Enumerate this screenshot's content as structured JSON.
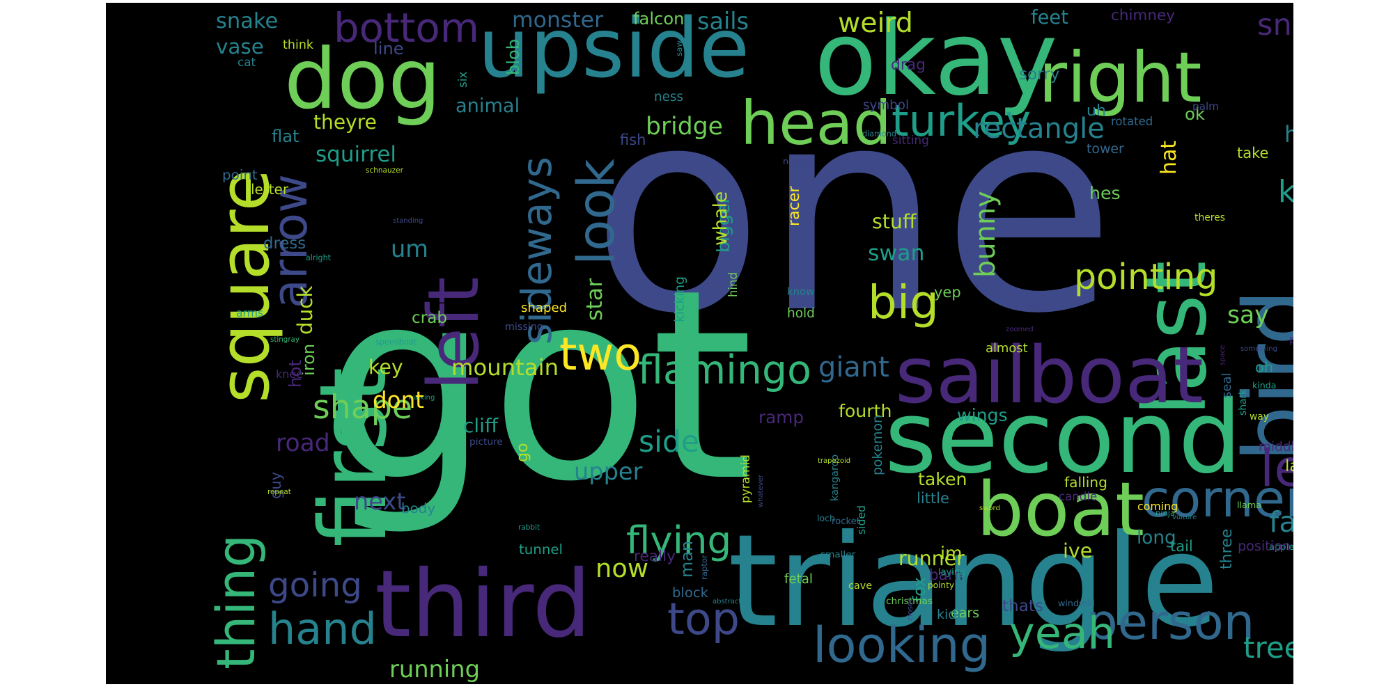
{
  "wordcloud": {
    "background": "#000000",
    "colormap": [
      "#440154",
      "#482878",
      "#3e4989",
      "#31688e",
      "#26828e",
      "#1f9e89",
      "#35b779",
      "#6ece58",
      "#b5de2b",
      "#fde725"
    ],
    "words": [
      {
        "text": "one",
        "color": "#3e4989"
      },
      {
        "text": "got",
        "color": "#35b779"
      },
      {
        "text": "triangle",
        "color": "#26828e"
      },
      {
        "text": "upside",
        "color": "#26828e"
      },
      {
        "text": "okay",
        "color": "#35b779"
      },
      {
        "text": "first",
        "color": "#35b779"
      },
      {
        "text": "second",
        "color": "#35b779"
      },
      {
        "text": "last",
        "color": "#35b779"
      },
      {
        "text": "bird",
        "color": "#31688e"
      },
      {
        "text": "square",
        "color": "#b5de2b"
      },
      {
        "text": "third",
        "color": "#482878"
      },
      {
        "text": "left",
        "color": "#482878"
      },
      {
        "text": "dog",
        "color": "#6ece58"
      },
      {
        "text": "right",
        "color": "#6ece58"
      },
      {
        "text": "head",
        "color": "#6ece58"
      },
      {
        "text": "turkey",
        "color": "#1f9e89"
      },
      {
        "text": "sailboat",
        "color": "#482878"
      },
      {
        "text": "boat",
        "color": "#6ece58"
      },
      {
        "text": "thing",
        "color": "#35b779"
      },
      {
        "text": "look",
        "color": "#31688e"
      },
      {
        "text": "arrow",
        "color": "#3e4989"
      },
      {
        "text": "bottom",
        "color": "#482878"
      },
      {
        "text": "sideways",
        "color": "#31688e"
      },
      {
        "text": "corner",
        "color": "#31688e"
      },
      {
        "text": "leg",
        "color": "#482878"
      },
      {
        "text": "looking",
        "color": "#31688e"
      },
      {
        "text": "person",
        "color": "#31688e"
      },
      {
        "text": "hand",
        "color": "#26828e"
      },
      {
        "text": "top",
        "color": "#3e4989"
      },
      {
        "text": "yeah",
        "color": "#35b779"
      },
      {
        "text": "two",
        "color": "#fde725"
      },
      {
        "text": "flamingo",
        "color": "#35b779"
      },
      {
        "text": "pointing",
        "color": "#b5de2b"
      },
      {
        "text": "big",
        "color": "#b5de2b"
      },
      {
        "text": "rectangle",
        "color": "#26828e"
      },
      {
        "text": "flying",
        "color": "#35b779"
      },
      {
        "text": "going",
        "color": "#3e4989"
      },
      {
        "text": "shape",
        "color": "#6ece58"
      },
      {
        "text": "side",
        "color": "#1f9e89"
      },
      {
        "text": "tree",
        "color": "#1f9e89"
      },
      {
        "text": "facing",
        "color": "#26828e"
      },
      {
        "text": "kind",
        "color": "#1f9e89"
      },
      {
        "text": "house",
        "color": "#26828e"
      },
      {
        "text": "squirrel",
        "color": "#1f9e89"
      },
      {
        "text": "mountain",
        "color": "#b5de2b"
      },
      {
        "text": "giant",
        "color": "#31688e"
      },
      {
        "text": "running",
        "color": "#6ece58"
      },
      {
        "text": "snake",
        "color": "#26828e"
      },
      {
        "text": "monster",
        "color": "#31688e"
      },
      {
        "text": "falcon",
        "color": "#6ece58"
      },
      {
        "text": "sails",
        "color": "#26828e"
      },
      {
        "text": "weird",
        "color": "#b5de2b"
      },
      {
        "text": "feet",
        "color": "#26828e"
      },
      {
        "text": "chimney",
        "color": "#482878"
      },
      {
        "text": "snout",
        "color": "#482878"
      },
      {
        "text": "holding",
        "color": "#6ece58"
      },
      {
        "text": "vase",
        "color": "#26828e"
      },
      {
        "text": "think",
        "color": "#b5de2b"
      },
      {
        "text": "line",
        "color": "#3e4989"
      },
      {
        "text": "blob",
        "color": "#35b779"
      },
      {
        "text": "saw",
        "color": "#26828e"
      },
      {
        "text": "drag",
        "color": "#482878"
      },
      {
        "text": "sorry",
        "color": "#26828e"
      },
      {
        "text": "rotated",
        "color": "#31688e"
      },
      {
        "text": "cat",
        "color": "#26828e"
      },
      {
        "text": "six",
        "color": "#1f9e89"
      },
      {
        "text": "symbol",
        "color": "#3e4989"
      },
      {
        "text": "ness",
        "color": "#26828e"
      },
      {
        "text": "ok",
        "color": "#6ece58"
      },
      {
        "text": "uh",
        "color": "#26828e"
      },
      {
        "text": "palm",
        "color": "#3e4989"
      },
      {
        "text": "shes",
        "color": "#b5de2b"
      },
      {
        "text": "theyre",
        "color": "#b5de2b"
      },
      {
        "text": "animal",
        "color": "#26828e"
      },
      {
        "text": "bridge",
        "color": "#6ece58"
      },
      {
        "text": "diamond",
        "color": "#26828e"
      },
      {
        "text": "flat",
        "color": "#26828e"
      },
      {
        "text": "fish",
        "color": "#3e4989"
      },
      {
        "text": "sitting",
        "color": "#482878"
      },
      {
        "text": "tower",
        "color": "#31688e"
      },
      {
        "text": "schnauzer",
        "color": "#b5de2b"
      },
      {
        "text": "point",
        "color": "#31688e"
      },
      {
        "text": "normal",
        "color": "#3e4989"
      },
      {
        "text": "take",
        "color": "#b5de2b"
      },
      {
        "text": "nose",
        "color": "#b5de2b"
      },
      {
        "text": "avalanche",
        "color": "#1f9e89"
      },
      {
        "text": "letter",
        "color": "#b5de2b"
      },
      {
        "text": "hes",
        "color": "#6ece58"
      },
      {
        "text": "four",
        "color": "#26828e"
      },
      {
        "text": "standing",
        "color": "#3e4989"
      },
      {
        "text": "stuff",
        "color": "#b5de2b"
      },
      {
        "text": "theres",
        "color": "#b5de2b"
      },
      {
        "text": "um",
        "color": "#26828e"
      },
      {
        "text": "dress",
        "color": "#31688e"
      },
      {
        "text": "swan",
        "color": "#1f9e89"
      },
      {
        "text": "alright",
        "color": "#1f9e89"
      },
      {
        "text": "star",
        "color": "#6ece58"
      },
      {
        "text": "bigger",
        "color": "#1f9e89"
      },
      {
        "text": "whale",
        "color": "#b5de2b"
      },
      {
        "text": "racer",
        "color": "#fde725"
      },
      {
        "text": "shaped",
        "color": "#fde725"
      },
      {
        "text": "kicking",
        "color": "#1f9e89"
      },
      {
        "text": "hind",
        "color": "#6ece58"
      },
      {
        "text": "bunny",
        "color": "#6ece58"
      },
      {
        "text": "hat",
        "color": "#fde725"
      },
      {
        "text": "parallelogram",
        "color": "#35b779"
      },
      {
        "text": "duck",
        "color": "#b5de2b"
      },
      {
        "text": "crab",
        "color": "#6ece58"
      },
      {
        "text": "missing",
        "color": "#3e4989"
      },
      {
        "text": "arms",
        "color": "#1f9e89"
      },
      {
        "text": "know",
        "color": "#26828e"
      },
      {
        "text": "hold",
        "color": "#6ece58"
      },
      {
        "text": "say",
        "color": "#6ece58"
      },
      {
        "text": "iron",
        "color": "#6ece58"
      },
      {
        "text": "stingray",
        "color": "#35b779"
      },
      {
        "text": "speedboat",
        "color": "#1f9e89"
      },
      {
        "text": "yep",
        "color": "#6ece58"
      },
      {
        "text": "zoomed",
        "color": "#482878"
      },
      {
        "text": "almost",
        "color": "#b5de2b"
      },
      {
        "text": "pipe",
        "color": "#482878"
      },
      {
        "text": "space",
        "color": "#482878"
      },
      {
        "text": "something",
        "color": "#3e4989"
      },
      {
        "text": "oh",
        "color": "#1f9e89"
      },
      {
        "text": "knee",
        "color": "#482878"
      },
      {
        "text": "hot",
        "color": "#482878"
      },
      {
        "text": "key",
        "color": "#b5de2b"
      },
      {
        "text": "walking",
        "color": "#1f9e89"
      },
      {
        "text": "fourth",
        "color": "#b5de2b"
      },
      {
        "text": "spread",
        "color": "#26828e"
      },
      {
        "text": "seal",
        "color": "#31688e"
      },
      {
        "text": "kinda",
        "color": "#1f9e89"
      },
      {
        "text": "shark",
        "color": "#1f9e89"
      },
      {
        "text": "kneeling",
        "color": "#b5de2b"
      },
      {
        "text": "ship",
        "color": "#6ece58"
      },
      {
        "text": "sort",
        "color": "#482878"
      },
      {
        "text": "mean",
        "color": "#b5de2b"
      },
      {
        "text": "go",
        "color": "#b5de2b"
      },
      {
        "text": "upright",
        "color": "#3e4989"
      },
      {
        "text": "ramp",
        "color": "#482878"
      },
      {
        "text": "way",
        "color": "#b5de2b"
      },
      {
        "text": "dont",
        "color": "#fde725"
      },
      {
        "text": "pokemon",
        "color": "#26828e"
      },
      {
        "text": "cliff",
        "color": "#1f9e89"
      },
      {
        "text": "picture",
        "color": "#3e4989"
      },
      {
        "text": "wings",
        "color": "#1f9e89"
      },
      {
        "text": "middle",
        "color": "#482878"
      },
      {
        "text": "lady",
        "color": "#b5de2b"
      },
      {
        "text": "road",
        "color": "#482878"
      },
      {
        "text": "pyramid",
        "color": "#b5de2b"
      },
      {
        "text": "upper",
        "color": "#26828e"
      },
      {
        "text": "kangaroo",
        "color": "#26828e"
      },
      {
        "text": "whatever",
        "color": "#3e4989"
      },
      {
        "text": "trapezoid",
        "color": "#b5de2b"
      },
      {
        "text": "guy",
        "color": "#3e4989"
      },
      {
        "text": "taken",
        "color": "#b5de2b"
      },
      {
        "text": "little",
        "color": "#26828e"
      },
      {
        "text": "sword",
        "color": "#b5de2b"
      },
      {
        "text": "candle",
        "color": "#482878"
      },
      {
        "text": "falling",
        "color": "#b5de2b"
      },
      {
        "text": "repeat",
        "color": "#b5de2b"
      },
      {
        "text": "next",
        "color": "#3e4989"
      },
      {
        "text": "body",
        "color": "#26828e"
      },
      {
        "text": "sided",
        "color": "#1f9e89"
      },
      {
        "text": "coming",
        "color": "#fde725"
      },
      {
        "text": "llama",
        "color": "#6ece58"
      },
      {
        "text": "vulture",
        "color": "#26828e"
      },
      {
        "text": "long",
        "color": "#26828e"
      },
      {
        "text": "ninja",
        "color": "#1f9e89"
      },
      {
        "text": "apple",
        "color": "#1f9e89"
      },
      {
        "text": "three",
        "color": "#26828e"
      },
      {
        "text": "loch",
        "color": "#26828e"
      },
      {
        "text": "rocket",
        "color": "#31688e"
      },
      {
        "text": "rabbit",
        "color": "#1f9e89"
      },
      {
        "text": "man",
        "color": "#26828e"
      },
      {
        "text": "tunnel",
        "color": "#1f9e89"
      },
      {
        "text": "smaller",
        "color": "#26828e"
      },
      {
        "text": "really",
        "color": "#482878"
      },
      {
        "text": "runner",
        "color": "#b5de2b"
      },
      {
        "text": "im",
        "color": "#b5de2b"
      },
      {
        "text": "ive",
        "color": "#b5de2b"
      },
      {
        "text": "position",
        "color": "#482878"
      },
      {
        "text": "tail",
        "color": "#1f9e89"
      },
      {
        "text": "half",
        "color": "#6ece58"
      },
      {
        "text": "speed",
        "color": "#6ece58"
      },
      {
        "text": "now",
        "color": "#b5de2b"
      },
      {
        "text": "raptor",
        "color": "#31688e"
      },
      {
        "text": "cave",
        "color": "#b5de2b"
      },
      {
        "text": "block",
        "color": "#31688e"
      },
      {
        "text": "pointy",
        "color": "#b5de2b"
      },
      {
        "text": "fox",
        "color": "#1f9e89"
      },
      {
        "text": "barn",
        "color": "#482878"
      },
      {
        "text": "ears",
        "color": "#6ece58"
      },
      {
        "text": "windmill",
        "color": "#31688e"
      },
      {
        "text": "thats",
        "color": "#3e4989"
      },
      {
        "text": "laying",
        "color": "#1f9e89"
      },
      {
        "text": "fetal",
        "color": "#6ece58"
      },
      {
        "text": "abstract",
        "color": "#26828e"
      },
      {
        "text": "christmas",
        "color": "#6ece58"
      },
      {
        "text": "kid",
        "color": "#26828e"
      },
      {
        "text": "closer",
        "color": "#3e4989"
      }
    ]
  }
}
